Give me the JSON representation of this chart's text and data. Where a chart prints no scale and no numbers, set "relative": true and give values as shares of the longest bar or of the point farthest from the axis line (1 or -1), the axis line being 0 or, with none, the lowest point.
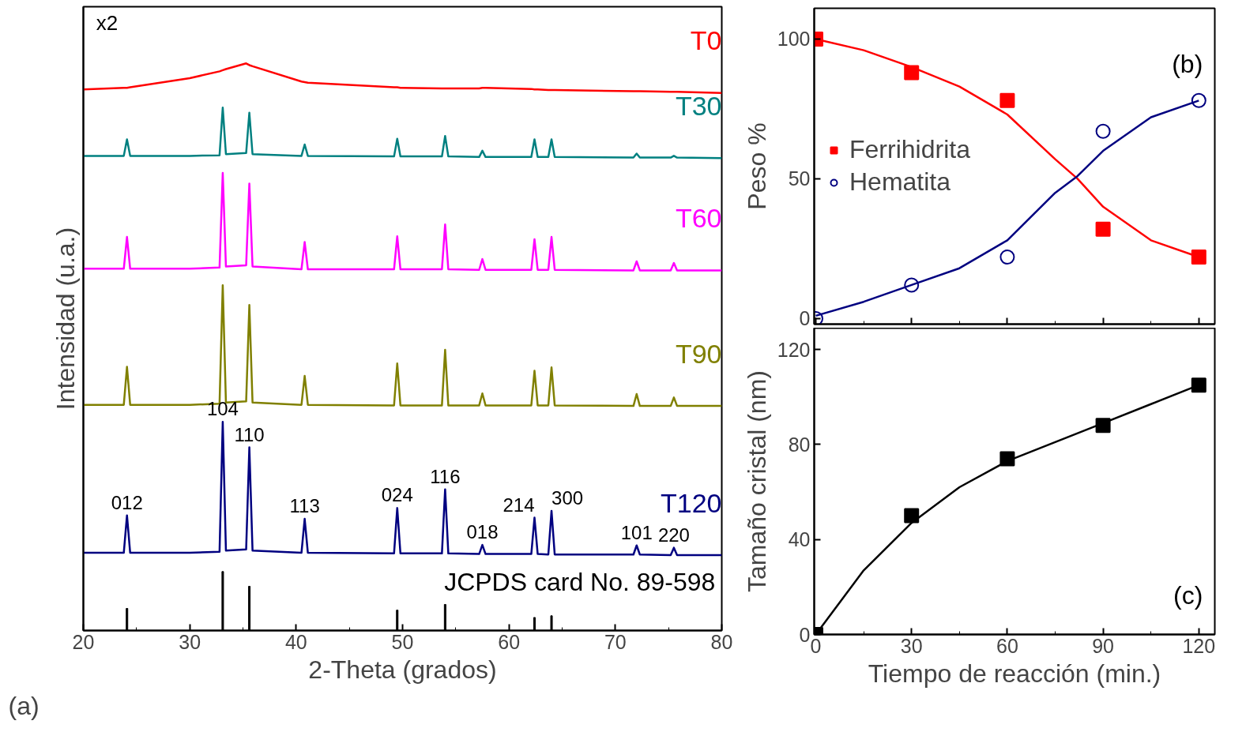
{
  "chart_data": [
    {
      "type": "line",
      "relative": true,
      "xlabel": "2-Theta (grados)",
      "ylabel": "Intensidad (u.a.)",
      "xlim": [
        20,
        80
      ],
      "xticks": [
        20,
        {
          "value": 25,
          "label": null
        },
        30,
        {
          "value": 35,
          "label": null
        },
        40,
        {
          "value": 45,
          "label": null
        },
        50,
        {
          "value": 55,
          "label": null
        },
        60,
        {
          "value": 65,
          "label": null
        },
        70,
        {
          "value": 75,
          "label": null
        },
        80
      ],
      "x": [
        20,
        23.8,
        24.1,
        24.4,
        30,
        32.8,
        33.1,
        33.4,
        35.3,
        35.6,
        35.9,
        40.5,
        40.8,
        41.1,
        49.2,
        49.5,
        49.8,
        53.7,
        54,
        54.3,
        57.2,
        57.5,
        57.8,
        62.1,
        62.4,
        62.7,
        63.7,
        64,
        64.3,
        71.7,
        72,
        72.3,
        75.2,
        75.5,
        75.8,
        80
      ],
      "series": [
        {
          "name": "T0",
          "color": "#ff0000",
          "values": [
            0.954,
            0.957,
            0.957,
            0.958,
            0.974,
            0.986,
            0.988,
            0.99,
            1.0,
            0.997,
            0.995,
            0.968,
            0.967,
            0.966,
            0.958,
            0.958,
            0.957,
            0.956,
            0.956,
            0.956,
            0.956,
            0.957,
            0.957,
            0.955,
            0.954,
            0.954,
            0.953,
            0.953,
            0.953,
            0.951,
            0.951,
            0.951,
            0.95,
            0.95,
            0.95,
            0.948
          ]
        },
        {
          "name": "T30",
          "color": "#008080",
          "values": [
            0.837,
            0.837,
            0.866,
            0.837,
            0.837,
            0.838,
            0.922,
            0.84,
            0.842,
            0.913,
            0.84,
            0.837,
            0.857,
            0.837,
            0.836,
            0.867,
            0.836,
            0.836,
            0.872,
            0.836,
            0.835,
            0.846,
            0.835,
            0.835,
            0.866,
            0.835,
            0.835,
            0.866,
            0.835,
            0.834,
            0.841,
            0.834,
            0.834,
            0.837,
            0.834,
            0.833
          ]
        },
        {
          "name": "T60",
          "color": "#ff00ff",
          "values": [
            0.638,
            0.638,
            0.694,
            0.638,
            0.638,
            0.64,
            0.807,
            0.642,
            0.644,
            0.788,
            0.642,
            0.637,
            0.685,
            0.637,
            0.637,
            0.695,
            0.637,
            0.637,
            0.716,
            0.637,
            0.636,
            0.655,
            0.636,
            0.636,
            0.69,
            0.636,
            0.636,
            0.694,
            0.636,
            0.635,
            0.651,
            0.635,
            0.635,
            0.648,
            0.635,
            0.635
          ]
        },
        {
          "name": "T90",
          "color": "#808000",
          "values": [
            0.398,
            0.398,
            0.465,
            0.398,
            0.398,
            0.4,
            0.609,
            0.402,
            0.404,
            0.574,
            0.402,
            0.398,
            0.449,
            0.398,
            0.397,
            0.471,
            0.397,
            0.397,
            0.495,
            0.397,
            0.397,
            0.418,
            0.397,
            0.397,
            0.458,
            0.397,
            0.397,
            0.464,
            0.397,
            0.396,
            0.417,
            0.396,
            0.396,
            0.411,
            0.396,
            0.396
          ]
        },
        {
          "name": "T120",
          "color": "#000080",
          "values": [
            0.137,
            0.137,
            0.203,
            0.137,
            0.137,
            0.139,
            0.368,
            0.141,
            0.143,
            0.323,
            0.141,
            0.137,
            0.197,
            0.137,
            0.136,
            0.216,
            0.136,
            0.136,
            0.249,
            0.136,
            0.135,
            0.151,
            0.135,
            0.135,
            0.199,
            0.135,
            0.134,
            0.211,
            0.134,
            0.134,
            0.15,
            0.134,
            0.133,
            0.146,
            0.133,
            0.133
          ]
        },
        {
          "type": "bar",
          "color": "#000000",
          "x": [
            24.1,
            33.1,
            35.6,
            49.5,
            54,
            62.4,
            64
          ],
          "values": [
            0.039,
            0.104,
            0.078,
            0.036,
            0.046,
            0.023,
            0.026
          ]
        }
      ],
      "annotations": [
        "x2",
        "JCPDS card No. 89-598",
        "(a)",
        {
          "text": "012",
          "x": 24.1,
          "y": 0.203
        },
        {
          "text": "104",
          "x": 33.1,
          "y": 0.368
        },
        {
          "text": "110",
          "x": 35.6,
          "y": 0.323
        },
        {
          "text": "113",
          "x": 40.8,
          "y": 0.197
        },
        {
          "text": "024",
          "x": 49.5,
          "y": 0.216
        },
        {
          "text": "116",
          "x": 54,
          "y": 0.249
        },
        {
          "text": "018",
          "x": 57.5,
          "y": 0.151
        },
        {
          "text": "214",
          "x": 62.4,
          "y": 0.199
        },
        {
          "text": "300",
          "x": 64,
          "y": 0.211
        },
        {
          "text": "101",
          "x": 72,
          "y": 0.15
        },
        {
          "text": "220",
          "x": 75.5,
          "y": 0.146
        }
      ]
    },
    {
      "type": "scatter",
      "ylabel": "Peso %",
      "xlim": [
        -0.5,
        125
      ],
      "ylim": [
        -2,
        111
      ],
      "tick_labels": "y",
      "legend": "left",
      "xticks": [
        0,
        {
          "value": 15,
          "label": null
        },
        30,
        {
          "value": 45,
          "label": null
        },
        60,
        {
          "value": 75,
          "label": null
        },
        90,
        {
          "value": 105,
          "label": null
        },
        120
      ],
      "yticks": [
        0,
        50,
        100
      ],
      "series": [
        {
          "type": "line",
          "color": "#ff0000",
          "x": [
            0,
            15,
            30,
            45,
            60,
            75,
            82,
            90,
            105,
            120
          ],
          "values": [
            100,
            96,
            90,
            83,
            73,
            57,
            50,
            40,
            28,
            22
          ]
        },
        {
          "type": "line",
          "color": "#000080",
          "x": [
            0,
            15,
            30,
            45,
            60,
            75,
            82,
            90,
            105,
            120
          ],
          "values": [
            1,
            6,
            12,
            18,
            28,
            45,
            51,
            60,
            72,
            78
          ]
        },
        {
          "name": "Ferrihidrita",
          "color": "#ff0000",
          "marker": "square",
          "x": [
            0,
            30,
            60,
            90,
            120
          ],
          "values": [
            100,
            88,
            78,
            32,
            22
          ]
        },
        {
          "name": "Hematita",
          "color": "#000080",
          "marker": "circle",
          "x": [
            0,
            30,
            60,
            90,
            120
          ],
          "values": [
            0,
            12,
            22,
            67,
            78
          ]
        }
      ],
      "annotations": [
        "(b)"
      ]
    },
    {
      "type": "scatter",
      "xlabel": "Tiempo de reacción (min.)",
      "ylabel": "Tamaño cristal (nm)",
      "xlim": [
        -0.5,
        125
      ],
      "ylim": [
        0,
        129
      ],
      "xticks": [
        0,
        {
          "value": 15,
          "label": null
        },
        30,
        {
          "value": 45,
          "label": null
        },
        60,
        {
          "value": 75,
          "label": null
        },
        90,
        {
          "value": 105,
          "label": null
        },
        120
      ],
      "yticks": [
        0,
        40,
        80,
        120
      ],
      "series": [
        {
          "type": "line",
          "color": "#000000",
          "x": [
            0,
            15,
            30,
            45,
            60,
            75,
            90,
            105,
            120
          ],
          "values": [
            0,
            27,
            47,
            62,
            73,
            81,
            89,
            97,
            105
          ]
        },
        {
          "color": "#000000",
          "marker": "square",
          "x": [
            0,
            30,
            60,
            90,
            120
          ],
          "values": [
            0,
            50,
            74,
            88,
            105
          ]
        }
      ],
      "annotations": [
        "(c)"
      ]
    }
  ]
}
